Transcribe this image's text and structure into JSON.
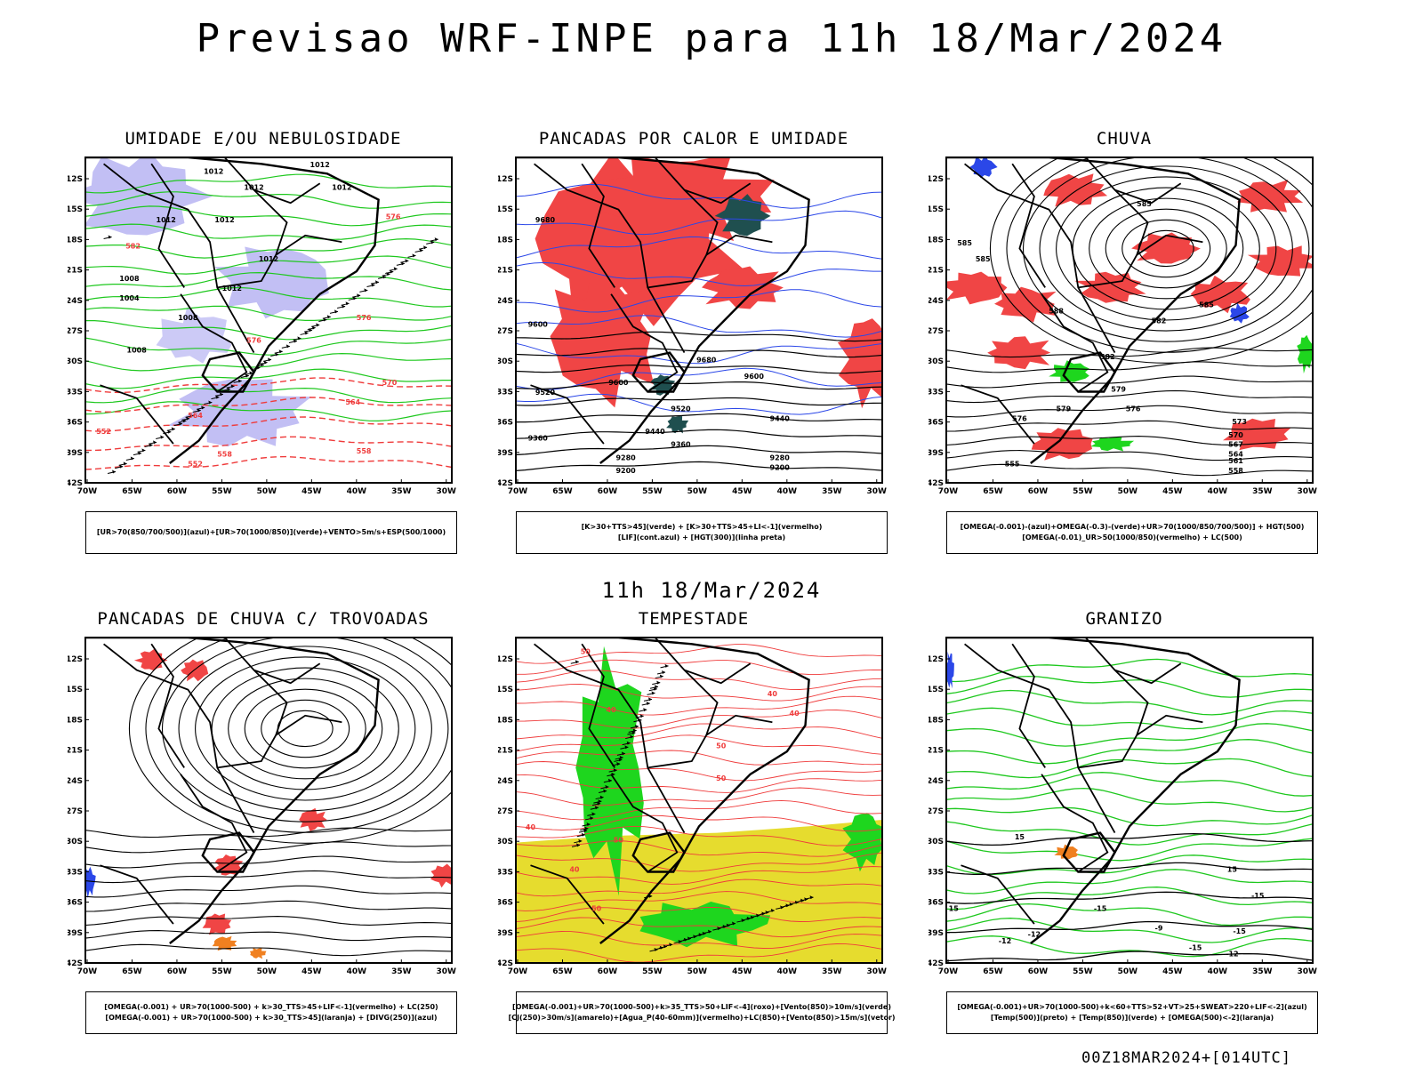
{
  "title": "Previsao WRF-INPE  para 11h 18/Mar/2024",
  "subtitle": "11h 18/Mar/2024",
  "footer": "00Z18MAR2024+[014UTC]",
  "axes": {
    "lon_labels": [
      "70W",
      "65W",
      "60W",
      "55W",
      "50W",
      "45W",
      "40W",
      "35W",
      "30W"
    ],
    "lat_labels": [
      "12S",
      "15S",
      "18S",
      "21S",
      "24S",
      "27S",
      "30S",
      "33S",
      "36S",
      "39S",
      "42S"
    ]
  },
  "colors": {
    "lavender": "#b7b4f2",
    "green_contour": "#1ec81e",
    "red_dashed": "#ef3b3b",
    "red_fill": "#f04545",
    "dark_teal": "#1f4f4f",
    "blue": "#2b47e8",
    "green_fill": "#1ed61e",
    "yellow": "#e6dc2e",
    "orange": "#f08020"
  },
  "panels": [
    {
      "title": "UMIDADE E/OU NEBULOSIDADE",
      "legend": [
        "[UR>70(850/700/500)](azul)+[UR>70(1000/850)](verde)+VENTO>5m/s+ESP(500/1000)"
      ],
      "labels": [
        "1012",
        "1012",
        "1012",
        "1008",
        "1004",
        "1008",
        "1012",
        "1008",
        "1012",
        "1012",
        "1012",
        "1012",
        "576",
        "582",
        "576",
        "576",
        "570",
        "564",
        "558",
        "552",
        "552",
        "558",
        "564"
      ]
    },
    {
      "title": "PANCADAS POR CALOR E UMIDADE",
      "legend": [
        "[K>30+TTS>45](verde) + [K>30+TTS>45+LI<-1](vermelho)",
        "[LIF](cont.azul) + [HGT(300)](linha preta)"
      ],
      "labels": [
        "9680",
        "9600",
        "9680",
        "9600",
        "9520",
        "9600",
        "9520",
        "9440",
        "9440",
        "9360",
        "9360",
        "9280",
        "9280",
        "9200",
        "9200"
      ]
    },
    {
      "title": "CHUVA",
      "legend": [
        "[OMEGA(-0.001)-(azul)+OMEGA(-0.3)-(verde)+UR>70(1000/850/700/500)] + HGT(500)",
        "[OMEGA(-0.01)_UR>50(1000/850)(vermelho) + LC(500)"
      ],
      "labels": [
        "585",
        "585",
        "585",
        "588",
        "582",
        "585",
        "582",
        "579",
        "579",
        "576",
        "576",
        "573",
        "570",
        "567",
        "564",
        "561",
        "558",
        "555"
      ]
    },
    {
      "title": "PANCADAS DE CHUVA C/ TROVOADAS",
      "legend": [
        "[OMEGA(-0.001) + UR>70(1000-500) + k>30_TTS>45+LIF<-1](vermelho) + LC(250)",
        "[OMEGA(-0.001) + UR>70(1000-500) + k>30_TTS>45](laranja) + [DIVG(250)](azul)"
      ],
      "labels": []
    },
    {
      "title": "TEMPESTADE",
      "legend": [
        "[OMEGA(-0.001)+UR>70(1000-500)+k>35_TTS>50+LIF<-4](roxo)+[Vento(850)>10m/s](verde)",
        "[CJ(250)>30m/s](amarelo)+[Agua_P(40-60mm)](vermelho)+LC(850)+[Vento(850)>15m/s](vetor)"
      ],
      "labels": [
        "50",
        "40",
        "50",
        "40",
        "50",
        "40",
        "40",
        "50",
        "40",
        "50"
      ]
    },
    {
      "title": "GRANIZO",
      "legend": [
        "[OMEGA(-0.001)+UR>70(1000-500)+k<60+TTS>52+VT>25+SWEAT>220+LIF<-2](azul)",
        "[Temp(500)](preto) + [Temp(850)](verde) + [OMEGA(500)<-2](laranja)"
      ],
      "labels": [
        "15",
        "15",
        "15",
        "-15",
        "-15",
        "-15",
        "-12",
        "-12",
        "-9",
        "-12",
        "-15"
      ]
    }
  ]
}
